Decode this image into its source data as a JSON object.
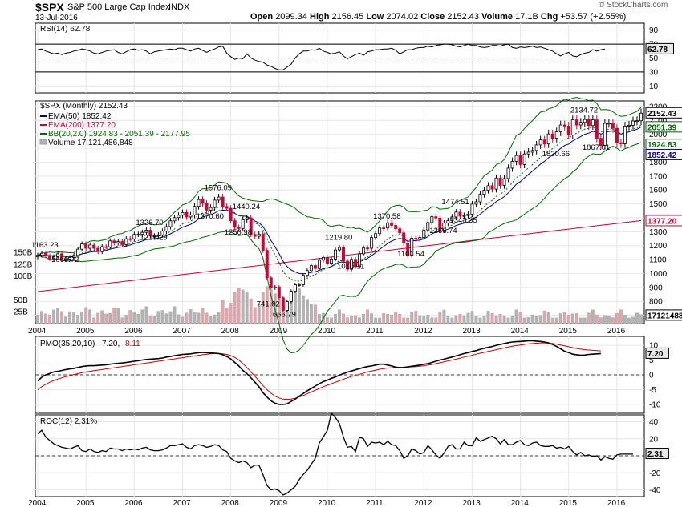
{
  "header": {
    "ticker": "$SPX",
    "name": "S&P 500 Large Cap Index",
    "exchange": "INDX",
    "date": "13-Jul-2016",
    "watermark": "© StockCharts.com",
    "open_label": "Open",
    "open_value": "2099.34",
    "high_label": "High",
    "high_value": "2156.45",
    "low_label": "Low",
    "low_value": "2074.02",
    "close_label": "Close",
    "close_value": "2152.43",
    "volume_label": "Volume",
    "volume_value": "17.1B",
    "chg_label": "Chg",
    "chg_value": "+53.57 (+2.55%)"
  },
  "colors": {
    "up_candle": "#000000",
    "down_candle": "#cc0033",
    "ema50": "#000080",
    "ema200": "#cc0033",
    "bollinger": "#006600",
    "volume_up": "#b3b3b3",
    "volume_down": "#e6a3a9",
    "rsi_fill_high": "#4d7a4d",
    "rsi_fill_low": "#9a5a5a",
    "pmo_line": "#000000",
    "pmo_signal": "#cc0000",
    "roc_line": "#000000"
  },
  "chart_data": [
    {
      "type": "line",
      "title": "RSI(14)",
      "legend": "RSI(14) 62.78",
      "last_value": "62.78",
      "ylim": [
        0,
        100
      ],
      "yticks": [
        10,
        30,
        50,
        70,
        90
      ],
      "reference_lines": [
        30,
        70
      ],
      "x_start": "2004-01",
      "interval": "monthly",
      "values": [
        62,
        63,
        60,
        58,
        56,
        57,
        55,
        57,
        58,
        60,
        61,
        63,
        62,
        60,
        57,
        56,
        58,
        60,
        61,
        62,
        58,
        56,
        59,
        62,
        63,
        61,
        62,
        60,
        56,
        59,
        60,
        61,
        62,
        63,
        62,
        64,
        64,
        62,
        60,
        63,
        64,
        61,
        58,
        61,
        63,
        66,
        67,
        57,
        52,
        48,
        50,
        49,
        56,
        50,
        47,
        45,
        44,
        40,
        38,
        35,
        33,
        33,
        37,
        41,
        50,
        56,
        60,
        60,
        62,
        61,
        64,
        60,
        58,
        56,
        57,
        59,
        53,
        49,
        52,
        55,
        57,
        54,
        59,
        60,
        62,
        62,
        63,
        63,
        64,
        61,
        56,
        59,
        62,
        62,
        64,
        65,
        65,
        67,
        66,
        68,
        69,
        70,
        70,
        69,
        67,
        66,
        68,
        70,
        68,
        68,
        66,
        65,
        66,
        68,
        68,
        67,
        69,
        70,
        65,
        64,
        66,
        65,
        66,
        67,
        65,
        66,
        64,
        62,
        60,
        56,
        53,
        56,
        58,
        53,
        52,
        55,
        57,
        58,
        62,
        60,
        62,
        63
      ]
    },
    {
      "type": "candlestick",
      "title": "$SPX (Monthly)",
      "legend_main": "$SPX (Monthly) 2152.43",
      "legend_ema50": "EMA(50) 1852.42",
      "legend_ema200": "EMA(200) 1377.20",
      "legend_bb": "BB(20,2.0) 1924.83 - 2051.39 - 2177.95",
      "legend_volume": "Volume 17,121,486,848",
      "last_tags": [
        "2152.43",
        "2051.39",
        "1924.83",
        "1852.42",
        "1377.20",
        "17121488"
      ],
      "ylim": [
        640,
        2240
      ],
      "yticks": [
        700,
        800,
        900,
        1000,
        1100,
        1200,
        1300,
        1400,
        1500,
        1600,
        1700,
        1800,
        1900,
        2000,
        2100,
        2200
      ],
      "volume_ticks": [
        "25B",
        "50B",
        "100B",
        "125B",
        "150B"
      ],
      "volume_tick_values": [
        25,
        50,
        100,
        125,
        150
      ],
      "volume_max_b": 160,
      "annotations": [
        {
          "label": "1163.23",
          "x": "2004-03",
          "y": 1163
        },
        {
          "label": "1060.72",
          "x": "2004-08",
          "y": 1060
        },
        {
          "label": "1326.70",
          "x": "2006-05",
          "y": 1326
        },
        {
          "label": "1219.29",
          "x": "2006-06",
          "y": 1219
        },
        {
          "label": "1576.09",
          "x": "2007-10",
          "y": 1576
        },
        {
          "label": "1370.60",
          "x": "2007-08",
          "y": 1370
        },
        {
          "label": "1440.24",
          "x": "2008-05",
          "y": 1440
        },
        {
          "label": "1256.98",
          "x": "2008-03",
          "y": 1256
        },
        {
          "label": "741.02",
          "x": "2008-11",
          "y": 741
        },
        {
          "label": "666.79",
          "x": "2009-03",
          "y": 666
        },
        {
          "label": "1219.80",
          "x": "2010-04",
          "y": 1219
        },
        {
          "label": "1010.91",
          "x": "2010-07",
          "y": 1010
        },
        {
          "label": "1370.58",
          "x": "2011-04",
          "y": 1370
        },
        {
          "label": "1101.54",
          "x": "2011-10",
          "y": 1101
        },
        {
          "label": "1474.51",
          "x": "2012-09",
          "y": 1474
        },
        {
          "label": "1266.74",
          "x": "2012-06",
          "y": 1266
        },
        {
          "label": "1343.35",
          "x": "2012-11",
          "y": 1343
        },
        {
          "label": "2134.72",
          "x": "2015-05",
          "y": 2134
        },
        {
          "label": "1820.66",
          "x": "2014-10",
          "y": 1820
        },
        {
          "label": "1867.01",
          "x": "2015-08",
          "y": 1867
        }
      ],
      "x_start": "2004-01",
      "interval": "monthly",
      "close": [
        1131,
        1145,
        1126,
        1107,
        1121,
        1141,
        1102,
        1104,
        1115,
        1130,
        1174,
        1212,
        1181,
        1204,
        1181,
        1157,
        1192,
        1191,
        1234,
        1220,
        1229,
        1207,
        1249,
        1248,
        1280,
        1281,
        1295,
        1311,
        1270,
        1270,
        1277,
        1304,
        1336,
        1378,
        1401,
        1418,
        1438,
        1406,
        1421,
        1482,
        1531,
        1503,
        1455,
        1474,
        1527,
        1549,
        1481,
        1468,
        1379,
        1331,
        1323,
        1386,
        1400,
        1280,
        1267,
        1283,
        1166,
        969,
        896,
        903,
        826,
        735,
        798,
        873,
        919,
        919,
        987,
        1021,
        1057,
        1036,
        1096,
        1115,
        1074,
        1104,
        1169,
        1187,
        1089,
        1031,
        1102,
        1049,
        1141,
        1183,
        1181,
        1258,
        1286,
        1327,
        1326,
        1364,
        1345,
        1321,
        1292,
        1219,
        1131,
        1253,
        1247,
        1258,
        1312,
        1366,
        1408,
        1398,
        1310,
        1362,
        1379,
        1406,
        1441,
        1412,
        1416,
        1426,
        1498,
        1515,
        1569,
        1598,
        1631,
        1606,
        1686,
        1633,
        1682,
        1757,
        1806,
        1848,
        1783,
        1859,
        1872,
        1884,
        1924,
        1960,
        1931,
        2003,
        1972,
        2018,
        2067,
        2059,
        1995,
        2104,
        2067,
        2086,
        2107,
        2063,
        2104,
        1972,
        1920,
        2079,
        2080,
        2043,
        1940,
        1932,
        2059,
        2065,
        2096,
        2098,
        2152
      ]
    },
    {
      "type": "line",
      "title": "PMO(35,20,10)",
      "legend_title": "PMO(35,20,10)",
      "legend_value1": "7.20",
      "legend_value2": "8.11",
      "last_tags": [
        "7.20"
      ],
      "ylim": [
        -13,
        13
      ],
      "yticks": [
        -10,
        -5,
        0,
        5,
        10
      ],
      "series": [
        {
          "name": "PMO(35,20,10)",
          "values": [
            -2,
            -0.8,
            0,
            0.5,
            1,
            1.2,
            1.5,
            1.8,
            2,
            2.2,
            2.5,
            2.8,
            3,
            3.1,
            3.1,
            3.2,
            3.3,
            3.4,
            3.6,
            3.8,
            3.9,
            4,
            4.2,
            4.4,
            4.6,
            4.8,
            5,
            5.2,
            5.3,
            5.4,
            5.5,
            5.7,
            6,
            6.2,
            6.5,
            6.7,
            6.9,
            7,
            7.1,
            7.3,
            7.5,
            7.6,
            7.5,
            7.4,
            7.3,
            7.2,
            6.8,
            6.2,
            5.4,
            4.2,
            3,
            1.5,
            0.4,
            -1,
            -2.5,
            -4,
            -6,
            -7.5,
            -8.8,
            -9.6,
            -10,
            -10,
            -9.8,
            -9,
            -8.2,
            -7.2,
            -6.3,
            -5.4,
            -4.6,
            -3.8,
            -3,
            -2.3,
            -1.8,
            -1.2,
            -0.7,
            -0.1,
            0.4,
            0.9,
            1.3,
            1.7,
            2.1,
            2.5,
            2.8,
            3,
            3.3,
            3.6,
            3.6,
            3.3,
            3,
            2.6,
            2.4,
            2.5,
            2.7,
            2.9,
            3.1,
            3.3,
            3.6,
            3.8,
            4.2,
            4.6,
            5,
            5.3,
            5.7,
            6,
            6.4,
            6.8,
            7.2,
            7.5,
            7.9,
            8.2,
            8.6,
            9,
            9.3,
            9.6,
            10,
            10.3,
            10.6,
            10.9,
            11.1,
            11.2,
            11.3,
            11.4,
            11.5,
            11.5,
            11.4,
            11.3,
            11.1,
            10.8,
            10.3,
            9.6,
            8.8,
            8,
            7.5,
            7,
            6.8,
            6.6,
            6.7,
            6.9,
            7,
            7.1,
            7.2
          ]
        },
        {
          "name": "Signal",
          "values": [
            -5,
            -4,
            -3.2,
            -2.5,
            -1.9,
            -1.4,
            -1,
            -0.6,
            -0.3,
            0.1,
            0.4,
            0.7,
            1,
            1.2,
            1.4,
            1.6,
            1.8,
            2,
            2.2,
            2.4,
            2.6,
            2.8,
            3,
            3.2,
            3.4,
            3.6,
            3.8,
            4,
            4.2,
            4.4,
            4.6,
            4.8,
            5,
            5.2,
            5.4,
            5.6,
            5.8,
            6,
            6.2,
            6.4,
            6.6,
            6.8,
            7,
            7.1,
            7.2,
            7.2,
            7.1,
            6.9,
            6.5,
            5.9,
            5,
            3.8,
            2.5,
            1,
            -0.5,
            -2,
            -3.6,
            -5,
            -6.2,
            -7.2,
            -7.8,
            -8.2,
            -8.3,
            -8.2,
            -7.9,
            -7.5,
            -7,
            -6.4,
            -5.8,
            -5.2,
            -4.6,
            -4,
            -3.5,
            -3,
            -2.5,
            -2,
            -1.5,
            -1,
            -0.6,
            -0.2,
            0.2,
            0.6,
            1,
            1.3,
            1.6,
            1.9,
            2.1,
            2.3,
            2.4,
            2.5,
            2.5,
            2.5,
            2.6,
            2.7,
            2.8,
            2.9,
            3.1,
            3.3,
            3.5,
            3.8,
            4.1,
            4.4,
            4.7,
            5,
            5.3,
            5.6,
            6,
            6.3,
            6.6,
            7,
            7.3,
            7.6,
            7.9,
            8.2,
            8.5,
            8.8,
            9.1,
            9.4,
            9.7,
            9.9,
            10.1,
            10.3,
            10.5,
            10.6,
            10.7,
            10.8,
            10.8,
            10.7,
            10.6,
            10.4,
            10.1,
            9.8,
            9.5,
            9.2,
            8.9,
            8.7,
            8.5,
            8.4,
            8.3,
            8.2,
            8.1
          ]
        }
      ]
    },
    {
      "type": "line",
      "title": "ROC(12)",
      "legend": "ROC(12) 2.31%",
      "last_tags": [
        "2.31"
      ],
      "ylim": [
        -48,
        48
      ],
      "yticks": [
        -40,
        -20,
        0,
        20,
        40
      ],
      "values": [
        26,
        30,
        22,
        18,
        14,
        12,
        10,
        9,
        8,
        10,
        12,
        6,
        5,
        8,
        5,
        4,
        6,
        5,
        9,
        8,
        8,
        6,
        8,
        7,
        8,
        7,
        9,
        10,
        7,
        6,
        6,
        7,
        9,
        12,
        12,
        13,
        14,
        10,
        8,
        12,
        13,
        12,
        10,
        11,
        13,
        12,
        7,
        5,
        -3,
        -6,
        -8,
        -6,
        -8,
        -14,
        -11,
        -11,
        -22,
        -35,
        -40,
        -39,
        -41,
        -46,
        -44,
        -40,
        -36,
        -28,
        -22,
        -17,
        -10,
        -3,
        15,
        22,
        30,
        50,
        45,
        38,
        22,
        10,
        11,
        5,
        22,
        20,
        11,
        16,
        15,
        16,
        13,
        17,
        13,
        12,
        6,
        -3,
        0,
        8,
        6,
        2,
        4,
        12,
        7,
        1,
        -3,
        3,
        11,
        13,
        8,
        8,
        16,
        12,
        12,
        21,
        17,
        19,
        21,
        23,
        20,
        14,
        19,
        13,
        13,
        16,
        18,
        13,
        12,
        15,
        16,
        12,
        11,
        11,
        12,
        9,
        10,
        8,
        11,
        5,
        1,
        4,
        0,
        1,
        -1,
        0,
        -5,
        -1,
        -3,
        -4,
        1,
        2,
        2,
        2,
        2
      ]
    }
  ],
  "x_axis_labels": [
    "2004",
    "2005",
    "2006",
    "2007",
    "2008",
    "2009",
    "2010",
    "2011",
    "2012",
    "2013",
    "2014",
    "2015",
    "2016"
  ]
}
